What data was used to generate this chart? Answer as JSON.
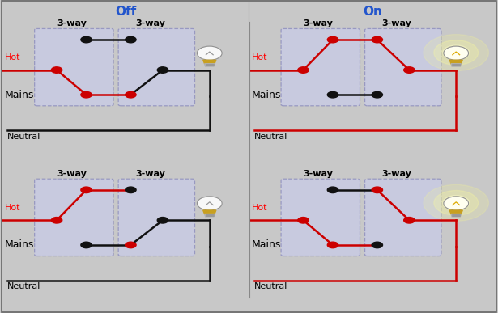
{
  "title_off": "Off",
  "title_on": "On",
  "bg_outer": "#c8c8c8",
  "bg_panel": "#e8e8e8",
  "switch_box_color": "#c8cce8",
  "switch_box_edge": "#8888bb",
  "wire_black": "#111111",
  "wire_red": "#cc0000",
  "node_black": "#111111",
  "node_red": "#cc0000",
  "label_hot": "Hot",
  "label_mains": "Mains",
  "label_neutral": "Neutral",
  "label_3way": "3-way",
  "title_color": "#2255cc",
  "font_title": 11,
  "font_label": 8,
  "font_switch": 8,
  "panels": [
    {
      "idx": 0,
      "on": false,
      "sw1_up": false,
      "sw2_up": false
    },
    {
      "idx": 1,
      "on": true,
      "sw1_up": true,
      "sw2_up": true
    },
    {
      "idx": 2,
      "on": false,
      "sw1_up": true,
      "sw2_up": false
    },
    {
      "idx": 3,
      "on": true,
      "sw1_up": false,
      "sw2_up": true
    }
  ]
}
